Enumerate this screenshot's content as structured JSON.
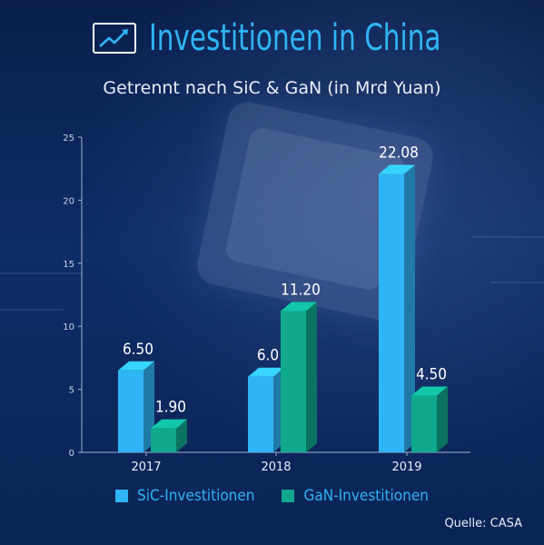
{
  "header": {
    "title": "Investitionen in China",
    "subtitle": "Getrennt nach SiC & GaN (in Mrd Yuan)",
    "icon": "trend-chart-icon"
  },
  "source": "Quelle: CASA",
  "colors": {
    "background": "#0b2456",
    "sic": "#2fb4f5",
    "gan": "#10a98e",
    "title": "#2fb4f5"
  },
  "chart_data": {
    "type": "bar",
    "title": "Investitionen in China",
    "subtitle": "Getrennt nach SiC & GaN (in Mrd Yuan)",
    "categories": [
      "2017",
      "2018",
      "2019"
    ],
    "series": [
      {
        "name": "SiC-Investitionen",
        "values": [
          6.5,
          6.0,
          22.08
        ],
        "labels": [
          "6.50",
          "6.0",
          "22.08"
        ]
      },
      {
        "name": "GaN-Investitionen",
        "values": [
          1.9,
          11.2,
          4.5
        ],
        "labels": [
          "1.90",
          "11.20",
          "4.50"
        ]
      }
    ],
    "ylim": [
      0,
      25
    ],
    "yticks": [
      "0",
      "5",
      "10",
      "15",
      "20",
      "25"
    ],
    "xlabel": "",
    "ylabel": "",
    "grid": false,
    "legend": "bottom"
  }
}
